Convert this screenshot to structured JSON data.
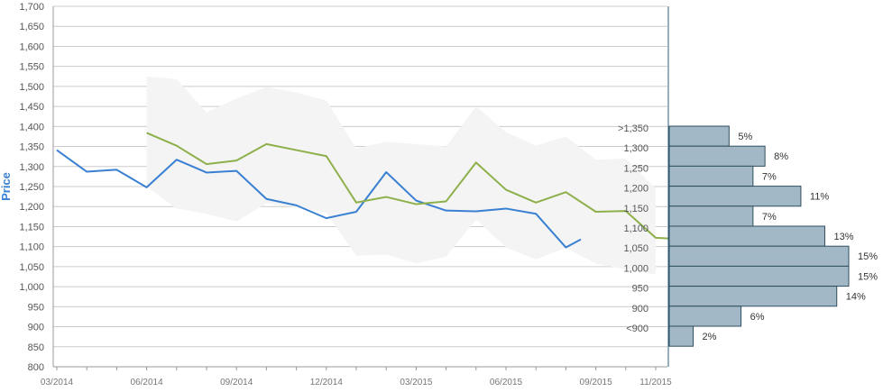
{
  "chart_data": [
    {
      "type": "line",
      "ylabel": "Price",
      "ylim": [
        800,
        1700
      ],
      "y_ticks": [
        "800",
        "850",
        "900",
        "950",
        "1,000",
        "1,050",
        "1,100",
        "1,150",
        "1,200",
        "1,250",
        "1,300",
        "1,350",
        "1,400",
        "1,450",
        "1,500",
        "1,550",
        "1,600",
        "1,650",
        "1,700"
      ],
      "x_ticks": [
        "03/2014",
        "06/2014",
        "09/2014",
        "12/2014",
        "03/2015",
        "06/2015",
        "09/2015",
        "11/2015"
      ],
      "x_tick_months": [
        0,
        3,
        6,
        9,
        12,
        15,
        18,
        20
      ],
      "grid": true,
      "colors": {
        "line_blue": "#3a80d2",
        "line_green": "#8db04b",
        "band_fill": "#f4f4f4",
        "grid": "#cccccc",
        "axis_label": "#3a80d2",
        "bar_fill": "#a2b8c6",
        "bar_stroke": "#2f4f5f"
      },
      "series": [
        {
          "color": "#3a80d2",
          "points": [
            {
              "x": 0,
              "y": 1341
            },
            {
              "x": 1,
              "y": 1287
            },
            {
              "x": 2,
              "y": 1292
            },
            {
              "x": 3,
              "y": 1248
            },
            {
              "x": 4,
              "y": 1317
            },
            {
              "x": 5,
              "y": 1285
            },
            {
              "x": 6,
              "y": 1289
            },
            {
              "x": 7,
              "y": 1219
            },
            {
              "x": 8,
              "y": 1203
            },
            {
              "x": 9,
              "y": 1171
            },
            {
              "x": 10,
              "y": 1187
            },
            {
              "x": 11,
              "y": 1286
            },
            {
              "x": 12,
              "y": 1215
            },
            {
              "x": 13,
              "y": 1190
            },
            {
              "x": 14,
              "y": 1188
            },
            {
              "x": 15,
              "y": 1195
            },
            {
              "x": 16,
              "y": 1182
            },
            {
              "x": 17,
              "y": 1098
            },
            {
              "x": 17.5,
              "y": 1118
            }
          ]
        },
        {
          "color": "#8db04b",
          "points": [
            {
              "x": 3,
              "y": 1384
            },
            {
              "x": 4,
              "y": 1352
            },
            {
              "x": 5,
              "y": 1306
            },
            {
              "x": 6,
              "y": 1315
            },
            {
              "x": 7,
              "y": 1356
            },
            {
              "x": 8,
              "y": 1341
            },
            {
              "x": 9,
              "y": 1326
            },
            {
              "x": 10,
              "y": 1210
            },
            {
              "x": 11,
              "y": 1224
            },
            {
              "x": 12,
              "y": 1206
            },
            {
              "x": 13,
              "y": 1213
            },
            {
              "x": 14,
              "y": 1310
            },
            {
              "x": 15,
              "y": 1242
            },
            {
              "x": 16,
              "y": 1210
            },
            {
              "x": 17,
              "y": 1236
            },
            {
              "x": 18,
              "y": 1187
            },
            {
              "x": 19,
              "y": 1189
            },
            {
              "x": 20,
              "y": 1122
            },
            {
              "x": 20.5,
              "y": 1120
            }
          ]
        }
      ],
      "band": {
        "upper": [
          {
            "x": 3,
            "y": 1525
          },
          {
            "x": 4,
            "y": 1518
          },
          {
            "x": 5,
            "y": 1435
          },
          {
            "x": 6,
            "y": 1470
          },
          {
            "x": 7,
            "y": 1498
          },
          {
            "x": 8,
            "y": 1485
          },
          {
            "x": 9,
            "y": 1465
          },
          {
            "x": 10,
            "y": 1345
          },
          {
            "x": 11,
            "y": 1362
          },
          {
            "x": 12,
            "y": 1356
          },
          {
            "x": 13,
            "y": 1350
          },
          {
            "x": 14,
            "y": 1450
          },
          {
            "x": 15,
            "y": 1386
          },
          {
            "x": 16,
            "y": 1352
          },
          {
            "x": 17,
            "y": 1375
          },
          {
            "x": 18,
            "y": 1317
          },
          {
            "x": 19,
            "y": 1320
          },
          {
            "x": 20,
            "y": 1245
          }
        ],
        "lower": [
          {
            "x": 3,
            "y": 1250
          },
          {
            "x": 4,
            "y": 1195
          },
          {
            "x": 5,
            "y": 1182
          },
          {
            "x": 6,
            "y": 1163
          },
          {
            "x": 7,
            "y": 1208
          },
          {
            "x": 8,
            "y": 1198
          },
          {
            "x": 9,
            "y": 1185
          },
          {
            "x": 10,
            "y": 1077
          },
          {
            "x": 11,
            "y": 1080
          },
          {
            "x": 12,
            "y": 1058
          },
          {
            "x": 13,
            "y": 1075
          },
          {
            "x": 14,
            "y": 1168
          },
          {
            "x": 15,
            "y": 1098
          },
          {
            "x": 16,
            "y": 1068
          },
          {
            "x": 17,
            "y": 1097
          },
          {
            "x": 18,
            "y": 1058
          },
          {
            "x": 19,
            "y": 1043
          },
          {
            "x": 20,
            "y": 1030
          }
        ]
      }
    },
    {
      "type": "bar",
      "orientation": "horizontal",
      "categories": [
        ">1,350",
        "1,300",
        "1,250",
        "1,200",
        "1,150",
        "1,100",
        "1,050",
        "1,000",
        "950",
        "900",
        "<900"
      ],
      "values": [
        5,
        8,
        7,
        11,
        7,
        13,
        15,
        15,
        14,
        6,
        2
      ],
      "value_labels": [
        "5%",
        "8%",
        "7%",
        "11%",
        "7%",
        "13%",
        "15%",
        "15%",
        "14%",
        "6%",
        "2%"
      ],
      "xlim": [
        0,
        15
      ]
    }
  ]
}
